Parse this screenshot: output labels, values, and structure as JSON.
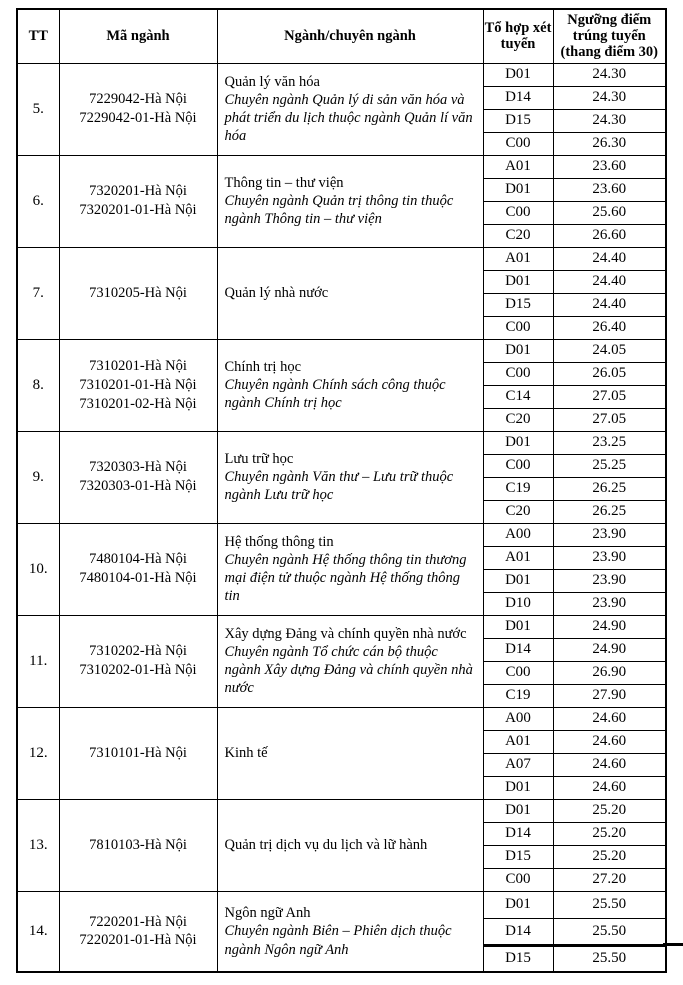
{
  "colors": {
    "background": "#ffffff",
    "text": "#000000",
    "border": "#000000"
  },
  "table": {
    "columns": [
      {
        "label": "TT"
      },
      {
        "label": "Mã ngành"
      },
      {
        "label": "Ngành/chuyên ngành"
      },
      {
        "label": "Tổ hợp xét tuyển"
      },
      {
        "label": "Ngưỡng điểm trúng tuyển (thang điểm 30)"
      }
    ],
    "rows": [
      {
        "tt": "5.",
        "codes": [
          "7229042-Hà Nội",
          "7229042-01-Hà Nội"
        ],
        "major": "Quản lý văn hóa",
        "specialization": "Chuyên ngành Quản lý di sản văn hóa và phát triển du lịch thuộc ngành Quản lí văn hóa",
        "scores": [
          {
            "combo": "D01",
            "score": "24.30"
          },
          {
            "combo": "D14",
            "score": "24.30"
          },
          {
            "combo": "D15",
            "score": "24.30"
          },
          {
            "combo": "C00",
            "score": "26.30"
          }
        ]
      },
      {
        "tt": "6.",
        "codes": [
          "7320201-Hà Nội",
          "7320201-01-Hà Nội"
        ],
        "major": "Thông tin – thư viện",
        "specialization": "Chuyên ngành Quản trị thông tin thuộc ngành Thông tin – thư viện",
        "scores": [
          {
            "combo": "A01",
            "score": "23.60"
          },
          {
            "combo": "D01",
            "score": "23.60"
          },
          {
            "combo": "C00",
            "score": "25.60"
          },
          {
            "combo": "C20",
            "score": "26.60"
          }
        ]
      },
      {
        "tt": "7.",
        "codes": [
          "7310205-Hà Nội"
        ],
        "major": "Quản lý nhà nước",
        "specialization": "",
        "scores": [
          {
            "combo": "A01",
            "score": "24.40"
          },
          {
            "combo": "D01",
            "score": "24.40"
          },
          {
            "combo": "D15",
            "score": "24.40"
          },
          {
            "combo": "C00",
            "score": "26.40"
          }
        ]
      },
      {
        "tt": "8.",
        "codes": [
          "7310201-Hà Nội",
          "7310201-01-Hà Nội",
          "7310201-02-Hà Nội"
        ],
        "major": "Chính trị học",
        "specialization": "Chuyên ngành Chính sách công thuộc ngành Chính trị học",
        "scores": [
          {
            "combo": "D01",
            "score": "24.05"
          },
          {
            "combo": "C00",
            "score": "26.05"
          },
          {
            "combo": "C14",
            "score": "27.05"
          },
          {
            "combo": "C20",
            "score": "27.05"
          }
        ]
      },
      {
        "tt": "9.",
        "codes": [
          "7320303-Hà Nội",
          "7320303-01-Hà Nội"
        ],
        "major": "Lưu trữ học",
        "specialization": "Chuyên ngành Văn thư – Lưu trữ thuộc ngành Lưu trữ học",
        "scores": [
          {
            "combo": "D01",
            "score": "23.25"
          },
          {
            "combo": "C00",
            "score": "25.25"
          },
          {
            "combo": "C19",
            "score": "26.25"
          },
          {
            "combo": "C20",
            "score": "26.25"
          }
        ]
      },
      {
        "tt": "10.",
        "codes": [
          "7480104-Hà Nội",
          "7480104-01-Hà Nội"
        ],
        "major": "Hệ thống thông tin",
        "specialization": "Chuyên ngành Hệ thống thông tin thương mại điện tử thuộc ngành Hệ thống thông tin",
        "scores": [
          {
            "combo": "A00",
            "score": "23.90"
          },
          {
            "combo": "A01",
            "score": "23.90"
          },
          {
            "combo": "D01",
            "score": "23.90"
          },
          {
            "combo": "D10",
            "score": "23.90"
          }
        ]
      },
      {
        "tt": "11.",
        "codes": [
          "7310202-Hà Nội",
          "7310202-01-Hà Nội"
        ],
        "major": "Xây dựng Đảng và chính quyền nhà nước",
        "specialization": "Chuyên ngành Tổ chức cán bộ thuộc ngành Xây dựng Đảng và chính quyền nhà nước",
        "scores": [
          {
            "combo": "D01",
            "score": "24.90"
          },
          {
            "combo": "D14",
            "score": "24.90"
          },
          {
            "combo": "C00",
            "score": "26.90"
          },
          {
            "combo": "C19",
            "score": "27.90"
          }
        ]
      },
      {
        "tt": "12.",
        "codes": [
          "7310101-Hà Nội"
        ],
        "major": "Kinh tế",
        "specialization": "",
        "scores": [
          {
            "combo": "A00",
            "score": "24.60"
          },
          {
            "combo": "A01",
            "score": "24.60"
          },
          {
            "combo": "A07",
            "score": "24.60"
          },
          {
            "combo": "D01",
            "score": "24.60"
          }
        ]
      },
      {
        "tt": "13.",
        "codes": [
          "7810103-Hà Nội"
        ],
        "major": "Quản trị dịch vụ du lịch và lữ hành",
        "specialization": "",
        "scores": [
          {
            "combo": "D01",
            "score": "25.20"
          },
          {
            "combo": "D14",
            "score": "25.20"
          },
          {
            "combo": "D15",
            "score": "25.20"
          },
          {
            "combo": "C00",
            "score": "27.20"
          }
        ]
      },
      {
        "tt": "14.",
        "codes": [
          "7220201-Hà Nội",
          "7220201-01-Hà Nội"
        ],
        "major": "Ngôn ngữ Anh",
        "specialization": "Chuyên ngành Biên – Phiên dịch thuộc ngành Ngôn ngữ Anh",
        "thick_divider_before": 2,
        "scores": [
          {
            "combo": "D01",
            "score": "25.50"
          },
          {
            "combo": "D14",
            "score": "25.50"
          },
          {
            "combo": "D15",
            "score": "25.50"
          }
        ]
      }
    ]
  }
}
